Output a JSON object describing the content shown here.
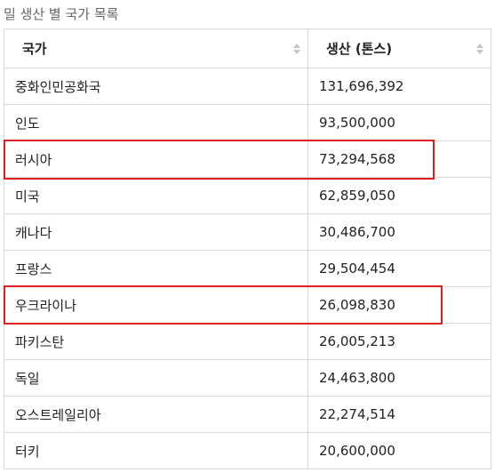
{
  "caption": "밀 생산 별 국가 목록",
  "table": {
    "headers": [
      "국가",
      "생산 (톤스)"
    ],
    "rows": [
      {
        "country": "중화인민공화국",
        "production": "131,696,392"
      },
      {
        "country": "인도",
        "production": "93,500,000"
      },
      {
        "country": "러시아",
        "production": "73,294,568"
      },
      {
        "country": "미국",
        "production": "62,859,050"
      },
      {
        "country": "캐나다",
        "production": "30,486,700"
      },
      {
        "country": "프랑스",
        "production": "29,504,454"
      },
      {
        "country": "우크라이나",
        "production": "26,098,830"
      },
      {
        "country": "파키스탄",
        "production": "26,005,213"
      },
      {
        "country": "독일",
        "production": "24,463,800"
      },
      {
        "country": "오스트레일리아",
        "production": "22,274,514"
      },
      {
        "country": "터키",
        "production": "20,600,000"
      }
    ]
  },
  "highlights": [
    "러시아",
    "우크라이나"
  ],
  "colors": {
    "highlight": "#e02020",
    "border": "#d8d8d8",
    "caption": "#666666"
  },
  "icons": {
    "sort": "sort-arrows-icon"
  }
}
